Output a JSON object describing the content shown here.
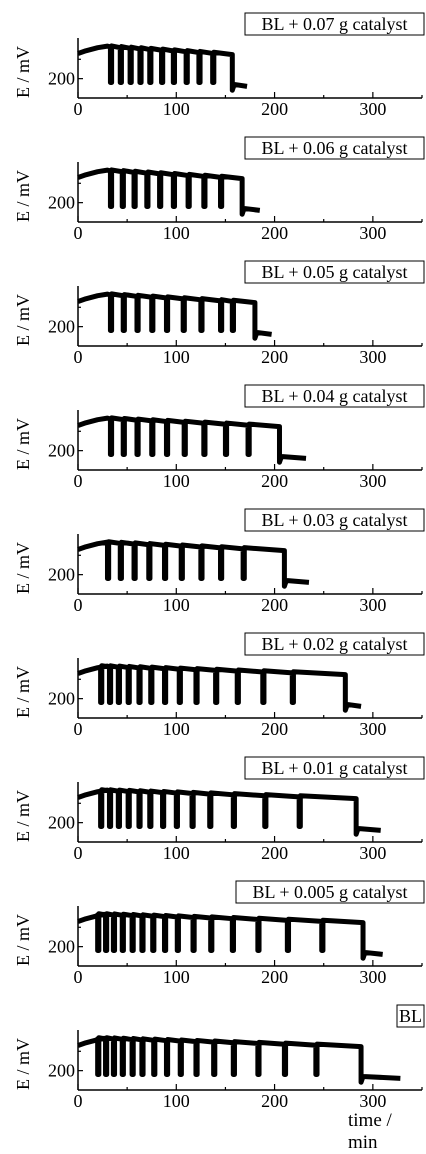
{
  "figure": {
    "xlabel": "time / min"
  },
  "chart_data": [
    {
      "type": "line",
      "legend": "BL + 0.07 g catalyst",
      "ylabel": "E / mV",
      "xlabel": "time / min",
      "xlim": [
        0,
        350
      ],
      "xticks": [
        0,
        100,
        200,
        300
      ],
      "yticks": [
        200
      ],
      "ylim": [
        150,
        305
      ],
      "drops": [
        33,
        43,
        53,
        63,
        73,
        85,
        97,
        110,
        123,
        137,
        157
      ],
      "tail_end": 172
    },
    {
      "type": "line",
      "legend": "BL + 0.06 g catalyst",
      "ylabel": "E / mV",
      "xlabel": "time / min",
      "xlim": [
        0,
        350
      ],
      "xticks": [
        0,
        100,
        200,
        300
      ],
      "yticks": [
        200
      ],
      "ylim": [
        150,
        305
      ],
      "drops": [
        33,
        45,
        57,
        70,
        83,
        97,
        112,
        128,
        145,
        167
      ],
      "tail_end": 185
    },
    {
      "type": "line",
      "legend": "BL + 0.05 g catalyst",
      "ylabel": "E / mV",
      "xlabel": "time / min",
      "xlim": [
        0,
        350
      ],
      "xticks": [
        0,
        100,
        200,
        300
      ],
      "yticks": [
        200
      ],
      "ylim": [
        150,
        305
      ],
      "drops": [
        33,
        46,
        60,
        75,
        90,
        107,
        125,
        145,
        157,
        180
      ],
      "tail_end": 197
    },
    {
      "type": "line",
      "legend": "BL + 0.04 g catalyst",
      "ylabel": "E / mV",
      "xlabel": "time / min",
      "xlim": [
        0,
        350
      ],
      "xticks": [
        0,
        100,
        200,
        300
      ],
      "yticks": [
        200
      ],
      "ylim": [
        150,
        305
      ],
      "drops": [
        33,
        46,
        60,
        75,
        90,
        108,
        128,
        150,
        173,
        205
      ],
      "tail_end": 232
    },
    {
      "type": "line",
      "legend": "BL + 0.03 g catalyst",
      "ylabel": "E / mV",
      "xlabel": "time / min",
      "xlim": [
        0,
        350
      ],
      "xticks": [
        0,
        100,
        200,
        300
      ],
      "yticks": [
        200
      ],
      "ylim": [
        150,
        305
      ],
      "drops": [
        30,
        43,
        57,
        72,
        88,
        105,
        125,
        145,
        168,
        210
      ],
      "tail_end": 235
    },
    {
      "type": "line",
      "legend": "BL + 0.02 g catalyst",
      "ylabel": "E / mV",
      "xlabel": "time / min",
      "xlim": [
        0,
        350
      ],
      "xticks": [
        0,
        100,
        200,
        300
      ],
      "yticks": [
        200
      ],
      "ylim": [
        150,
        305
      ],
      "drops": [
        23,
        32,
        41,
        51,
        62,
        74,
        88,
        103,
        120,
        140,
        162,
        188,
        218,
        272
      ],
      "tail_end": 288
    },
    {
      "type": "line",
      "legend": "BL + 0.01 g catalyst",
      "ylabel": "E / mV",
      "xlabel": "time / min",
      "xlim": [
        0,
        350
      ],
      "xticks": [
        0,
        100,
        200,
        300
      ],
      "yticks": [
        200
      ],
      "ylim": [
        150,
        305
      ],
      "drops": [
        23,
        32,
        41,
        51,
        62,
        73,
        86,
        100,
        116,
        134,
        158,
        190,
        225,
        283
      ],
      "tail_end": 308
    },
    {
      "type": "line",
      "legend": "BL + 0.005 g catalyst",
      "ylabel": "E / mV",
      "xlabel": "time / min",
      "xlim": [
        0,
        350
      ],
      "xticks": [
        0,
        100,
        200,
        300
      ],
      "yticks": [
        200
      ],
      "ylim": [
        150,
        305
      ],
      "drops": [
        20,
        28,
        36,
        45,
        55,
        65,
        76,
        88,
        101,
        117,
        135,
        157,
        183,
        213,
        248,
        290
      ],
      "tail_end": 310
    },
    {
      "type": "line",
      "legend": "BL",
      "ylabel": "E / mV",
      "xlabel": "time / min",
      "xlim": [
        0,
        350
      ],
      "xticks": [
        0,
        100,
        200,
        300
      ],
      "yticks": [
        200
      ],
      "ylim": [
        150,
        305
      ],
      "drops": [
        20,
        28,
        36,
        45,
        55,
        65,
        77,
        90,
        104,
        120,
        138,
        158,
        183,
        210,
        242,
        288
      ],
      "tail_end": 328
    }
  ]
}
